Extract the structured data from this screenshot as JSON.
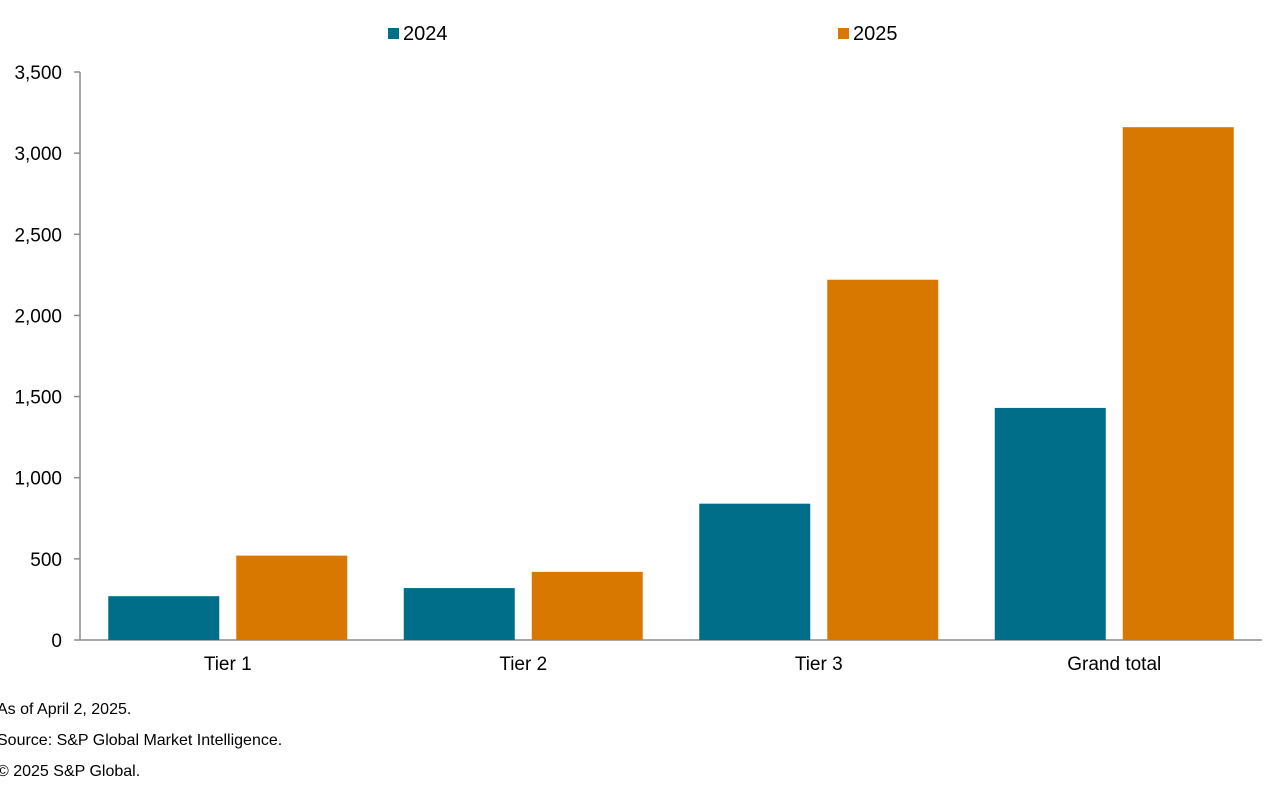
{
  "colors": {
    "series_2024": "#006D89",
    "series_2025": "#D97800",
    "axis": "#8C8C8C"
  },
  "chart_data": {
    "type": "bar",
    "categories": [
      "Tier 1",
      "Tier 2",
      "Tier 3",
      "Grand total"
    ],
    "series": [
      {
        "name": "2024",
        "values": [
          270,
          320,
          840,
          1430
        ]
      },
      {
        "name": "2025",
        "values": [
          520,
          420,
          2220,
          3160
        ]
      }
    ],
    "ylim": [
      0,
      3500
    ],
    "yticks": [
      0,
      500,
      1000,
      1500,
      2000,
      2500,
      3000,
      3500
    ],
    "ytick_labels": [
      "0",
      "500",
      "1,000",
      "1,500",
      "2,000",
      "2,500",
      "3,000",
      "3,500"
    ],
    "legend_position": "top-center",
    "grid": false
  },
  "footnotes": {
    "as_of": "As of April 2, 2025.",
    "source": "Source: S&P Global Market Intelligence.",
    "copyright": "© 2025 S&P Global."
  }
}
